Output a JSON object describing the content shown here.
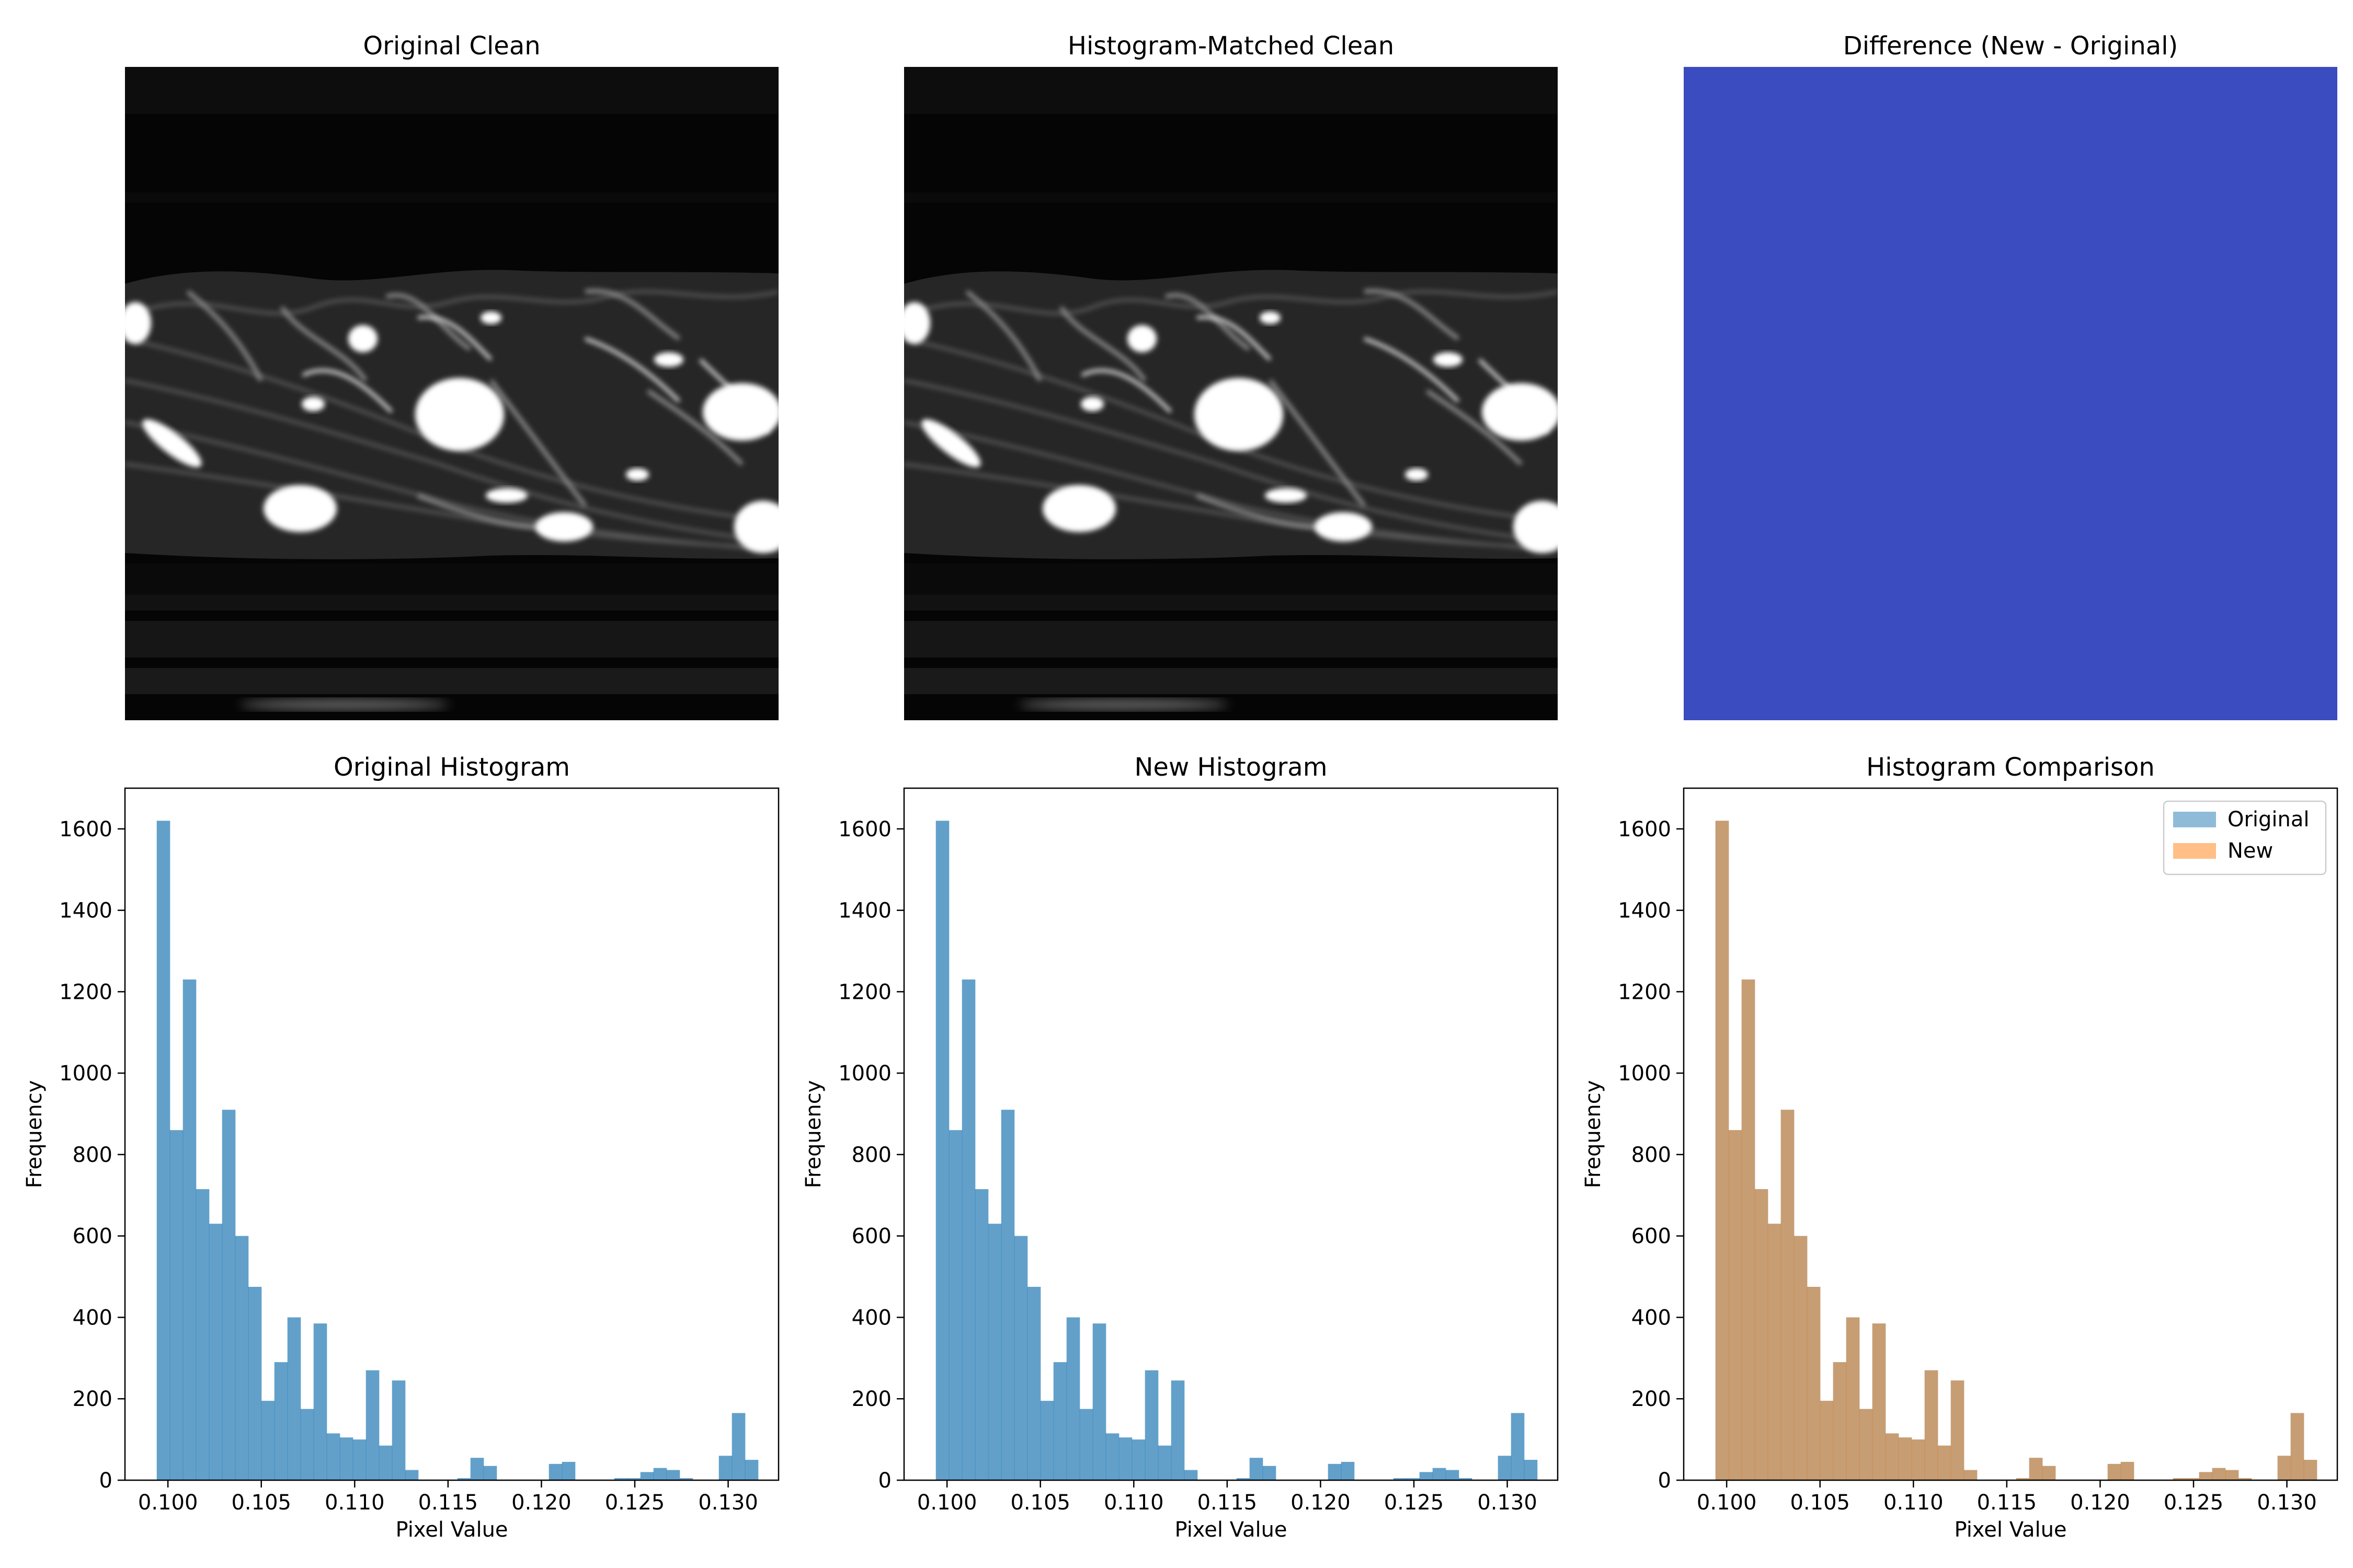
{
  "colors": {
    "original": "#1f77b4",
    "new": "#ff7f0e",
    "difference_fill": "#3b4cc0",
    "overlap": "#c49a6c"
  },
  "images": [
    {
      "title": "Original Clean",
      "kind": "grayscale-flow-field"
    },
    {
      "title": "Histogram-Matched Clean",
      "kind": "grayscale-flow-field"
    },
    {
      "title": "Difference (New - Original)",
      "kind": "uniform-diverging-colormap"
    }
  ],
  "chart_data": [
    {
      "type": "bar",
      "title": "Original Histogram",
      "xlabel": "Pixel Value",
      "ylabel": "Frequency",
      "xlim": [
        0.0977,
        0.1327
      ],
      "ylim": [
        0,
        1700
      ],
      "xticks": [
        "0.100",
        "0.105",
        "0.110",
        "0.115",
        "0.120",
        "0.125",
        "0.130"
      ],
      "yticks": [
        "0",
        "200",
        "400",
        "600",
        "800",
        "1000",
        "1200",
        "1400",
        "1600"
      ],
      "series": [
        {
          "values": [
            1620,
            860,
            1230,
            715,
            630,
            910,
            600,
            475,
            195,
            290,
            400,
            175,
            385,
            115,
            105,
            100,
            270,
            85,
            245,
            25,
            0,
            0,
            0,
            5,
            55,
            35,
            0,
            0,
            0,
            0,
            40,
            45,
            0,
            0,
            0,
            5,
            5,
            20,
            30,
            25,
            5,
            0,
            0,
            60,
            165,
            50
          ]
        }
      ]
    },
    {
      "type": "bar",
      "title": "New Histogram",
      "xlabel": "Pixel Value",
      "ylabel": "Frequency",
      "xlim": [
        0.0977,
        0.1327
      ],
      "ylim": [
        0,
        1700
      ],
      "xticks": [
        "0.100",
        "0.105",
        "0.110",
        "0.115",
        "0.120",
        "0.125",
        "0.130"
      ],
      "yticks": [
        "0",
        "200",
        "400",
        "600",
        "800",
        "1000",
        "1200",
        "1400",
        "1600"
      ],
      "series": [
        {
          "values": [
            1620,
            860,
            1230,
            715,
            630,
            910,
            600,
            475,
            195,
            290,
            400,
            175,
            385,
            115,
            105,
            100,
            270,
            85,
            245,
            25,
            0,
            0,
            0,
            5,
            55,
            35,
            0,
            0,
            0,
            0,
            40,
            45,
            0,
            0,
            0,
            5,
            5,
            20,
            30,
            25,
            5,
            0,
            0,
            60,
            165,
            50
          ]
        }
      ]
    },
    {
      "type": "bar",
      "title": "Histogram Comparison",
      "xlabel": "Pixel Value",
      "ylabel": "Frequency",
      "xlim": [
        0.0977,
        0.1327
      ],
      "ylim": [
        0,
        1700
      ],
      "xticks": [
        "0.100",
        "0.105",
        "0.110",
        "0.115",
        "0.120",
        "0.125",
        "0.130"
      ],
      "yticks": [
        "0",
        "200",
        "400",
        "600",
        "800",
        "1000",
        "1200",
        "1400",
        "1600"
      ],
      "legend": {
        "placement": "top-right"
      },
      "series": [
        {
          "name": "Original",
          "values": [
            1620,
            860,
            1230,
            715,
            630,
            910,
            600,
            475,
            195,
            290,
            400,
            175,
            385,
            115,
            105,
            100,
            270,
            85,
            245,
            25,
            0,
            0,
            0,
            5,
            55,
            35,
            0,
            0,
            0,
            0,
            40,
            45,
            0,
            0,
            0,
            5,
            5,
            20,
            30,
            25,
            5,
            0,
            0,
            60,
            165,
            50
          ]
        },
        {
          "name": "New",
          "values": [
            1620,
            860,
            1230,
            715,
            630,
            910,
            600,
            475,
            195,
            290,
            400,
            175,
            385,
            115,
            105,
            100,
            270,
            85,
            245,
            25,
            0,
            0,
            0,
            5,
            55,
            35,
            0,
            0,
            0,
            0,
            40,
            45,
            0,
            0,
            0,
            5,
            5,
            20,
            30,
            25,
            5,
            0,
            0,
            60,
            165,
            50
          ]
        }
      ]
    }
  ],
  "bins": {
    "start": 0.0994,
    "width": 0.0007
  }
}
